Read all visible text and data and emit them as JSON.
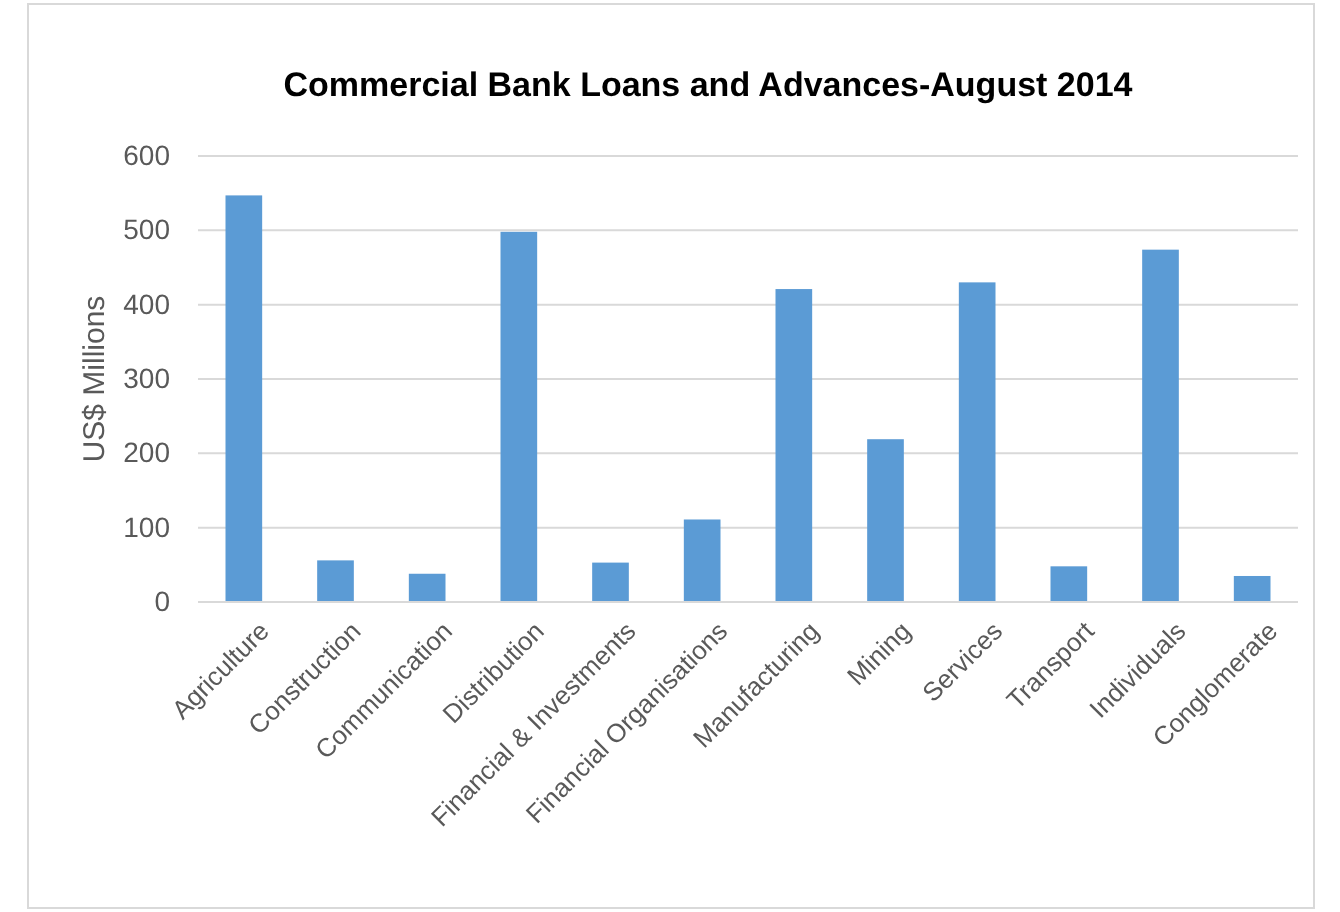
{
  "chart_data": {
    "type": "bar",
    "title": "Commercial Bank Loans and Advances-August 2014",
    "ylabel": "US$ Millions",
    "categories": [
      "Agriculture",
      "Construction",
      "Communication",
      "Distribution",
      "Financial & Investments",
      "Financial Organisations",
      "Manufacturing",
      "Mining",
      "Services",
      "Transport",
      "Individuals",
      "Conglomerate"
    ],
    "values": [
      547,
      56,
      38,
      498,
      53,
      111,
      421,
      219,
      430,
      48,
      474,
      35
    ],
    "color": "#5b9bd5",
    "ylim": [
      0,
      600
    ],
    "yticks": [
      0,
      100,
      200,
      300,
      400,
      500,
      600
    ],
    "grid": "y"
  }
}
